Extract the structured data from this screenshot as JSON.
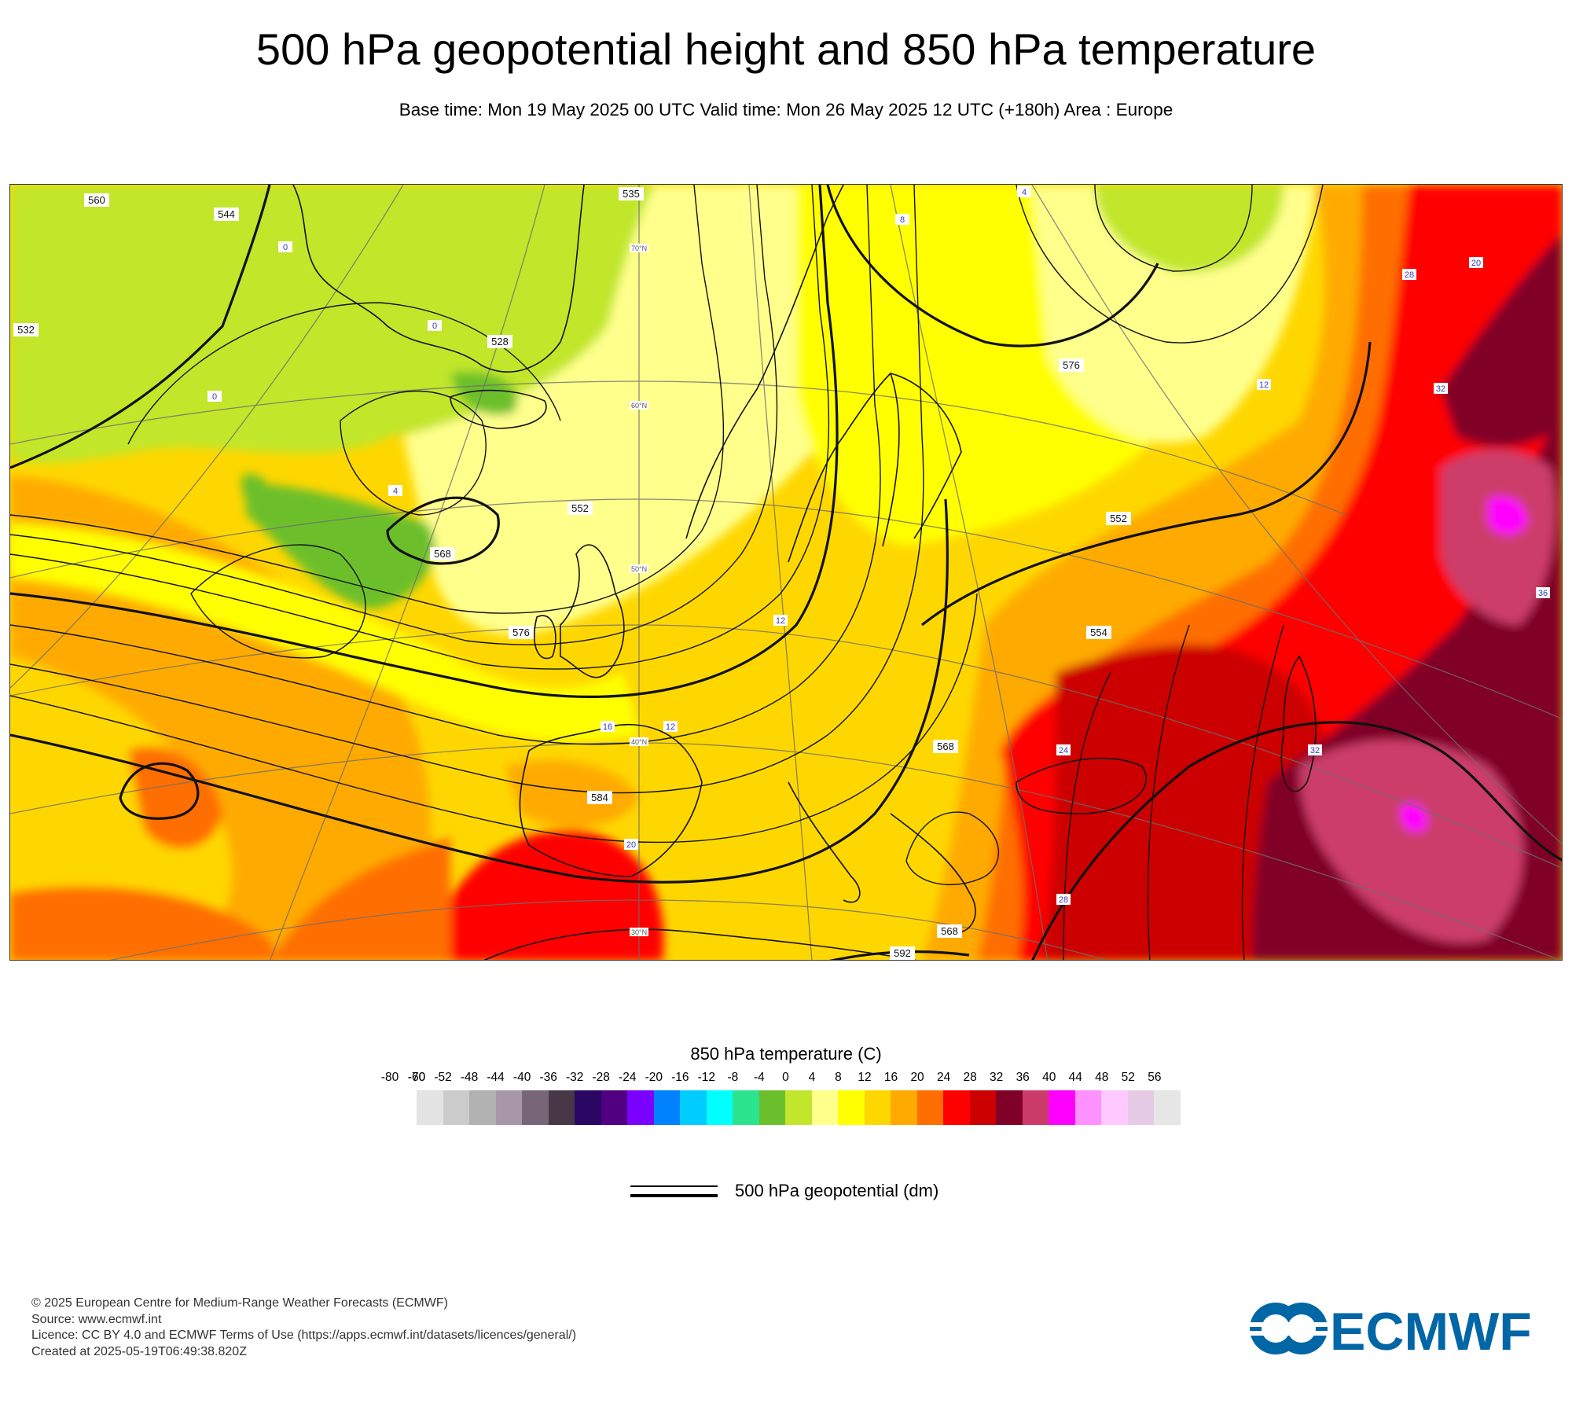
{
  "title": "500 hPa geopotential height and 850 hPa temperature",
  "subtitle": "Base time: Mon 19 May 2025 00 UTC Valid time: Mon 26 May 2025 12 UTC (+180h) Area : Europe",
  "map": {
    "geopotential_labels": [
      "560",
      "544",
      "535",
      "552",
      "528",
      "568",
      "576",
      "584",
      "552",
      "554",
      "576",
      "568",
      "592",
      "568",
      "532"
    ],
    "temperature_labels": [
      "0",
      "0",
      "0",
      "4",
      "12",
      "16",
      "20",
      "24",
      "28",
      "32",
      "32",
      "28",
      "36",
      "4",
      "8",
      "12",
      "12",
      "20"
    ],
    "latitude_labels": [
      "70°N",
      "60°N",
      "50°N",
      "40°N",
      "30°N"
    ]
  },
  "legend": {
    "title": "850 hPa temperature (C)",
    "ticks": [
      "-80",
      "-70",
      "-60",
      "-52",
      "-48",
      "-44",
      "-40",
      "-36",
      "-32",
      "-28",
      "-24",
      "-20",
      "-16",
      "-12",
      "-8",
      "-4",
      "0",
      "4",
      "8",
      "12",
      "16",
      "20",
      "24",
      "28",
      "32",
      "36",
      "40",
      "44",
      "48",
      "52",
      "56"
    ],
    "colors": [
      "#e3e3e3",
      "#cbcbcb",
      "#b1b1b1",
      "#a897a8",
      "#786678",
      "#473747",
      "#2a0763",
      "#500081",
      "#7a00ff",
      "#0082ff",
      "#00ccff",
      "#00ffff",
      "#2ce38e",
      "#6cbf2c",
      "#c1e62c",
      "#ffff8c",
      "#ffff00",
      "#ffd700",
      "#ffaa00",
      "#ff6e00",
      "#ff0000",
      "#cc0000",
      "#800028",
      "#cc3c6a",
      "#ff00ff",
      "#ff91ff",
      "#ffc9ff",
      "#e5cbe5",
      "#e6e6e6"
    ]
  },
  "contour_legend": {
    "label": "500 hPa geopotential (dm)"
  },
  "footer": {
    "copyright": "© 2025 European Centre for Medium-Range Weather Forecasts (ECMWF)",
    "source": "Source: www.ecmwf.int",
    "licence": "Licence: CC BY 4.0 and ECMWF Terms of Use (https://apps.ecmwf.int/datasets/licences/general/)",
    "created": "Created at 2025-05-19T06:49:38.820Z"
  },
  "logo": {
    "text": "ECMWF",
    "color": "#0066a6"
  }
}
